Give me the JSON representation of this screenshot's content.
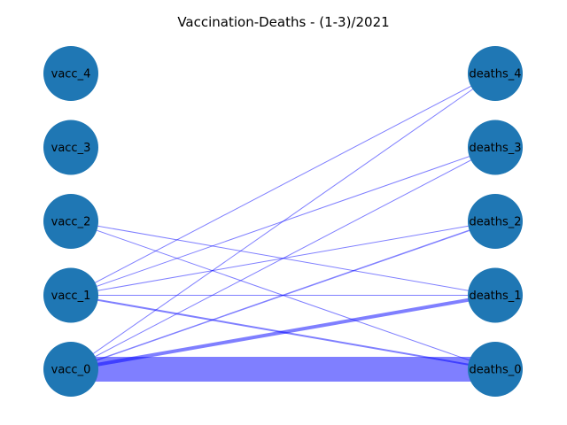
{
  "title": "Vaccination-Deaths - (1-3)/2021",
  "colors": {
    "node": "#1f77b4",
    "edge": "#0000ff",
    "label": "#000000",
    "background": "#ffffff"
  },
  "chart_data": {
    "type": "bipartite-graph",
    "title": "Vaccination-Deaths - (1-3)/2021",
    "left_nodes": [
      "vacc_4",
      "vacc_3",
      "vacc_2",
      "vacc_1",
      "vacc_0"
    ],
    "right_nodes": [
      "deaths_4",
      "deaths_3",
      "deaths_2",
      "deaths_1",
      "deaths_0"
    ],
    "edges": [
      {
        "source": "vacc_0",
        "target": "deaths_0",
        "weight": 28
      },
      {
        "source": "vacc_0",
        "target": "deaths_1",
        "weight": 4
      },
      {
        "source": "vacc_0",
        "target": "deaths_2",
        "weight": 1.5
      },
      {
        "source": "vacc_0",
        "target": "deaths_3",
        "weight": 1
      },
      {
        "source": "vacc_0",
        "target": "deaths_4",
        "weight": 1
      },
      {
        "source": "vacc_1",
        "target": "deaths_0",
        "weight": 2
      },
      {
        "source": "vacc_1",
        "target": "deaths_1",
        "weight": 1
      },
      {
        "source": "vacc_1",
        "target": "deaths_2",
        "weight": 1
      },
      {
        "source": "vacc_1",
        "target": "deaths_3",
        "weight": 1
      },
      {
        "source": "vacc_1",
        "target": "deaths_4",
        "weight": 1
      },
      {
        "source": "vacc_2",
        "target": "deaths_0",
        "weight": 1
      },
      {
        "source": "vacc_2",
        "target": "deaths_1",
        "weight": 1
      }
    ],
    "grid": false,
    "axes": false
  }
}
